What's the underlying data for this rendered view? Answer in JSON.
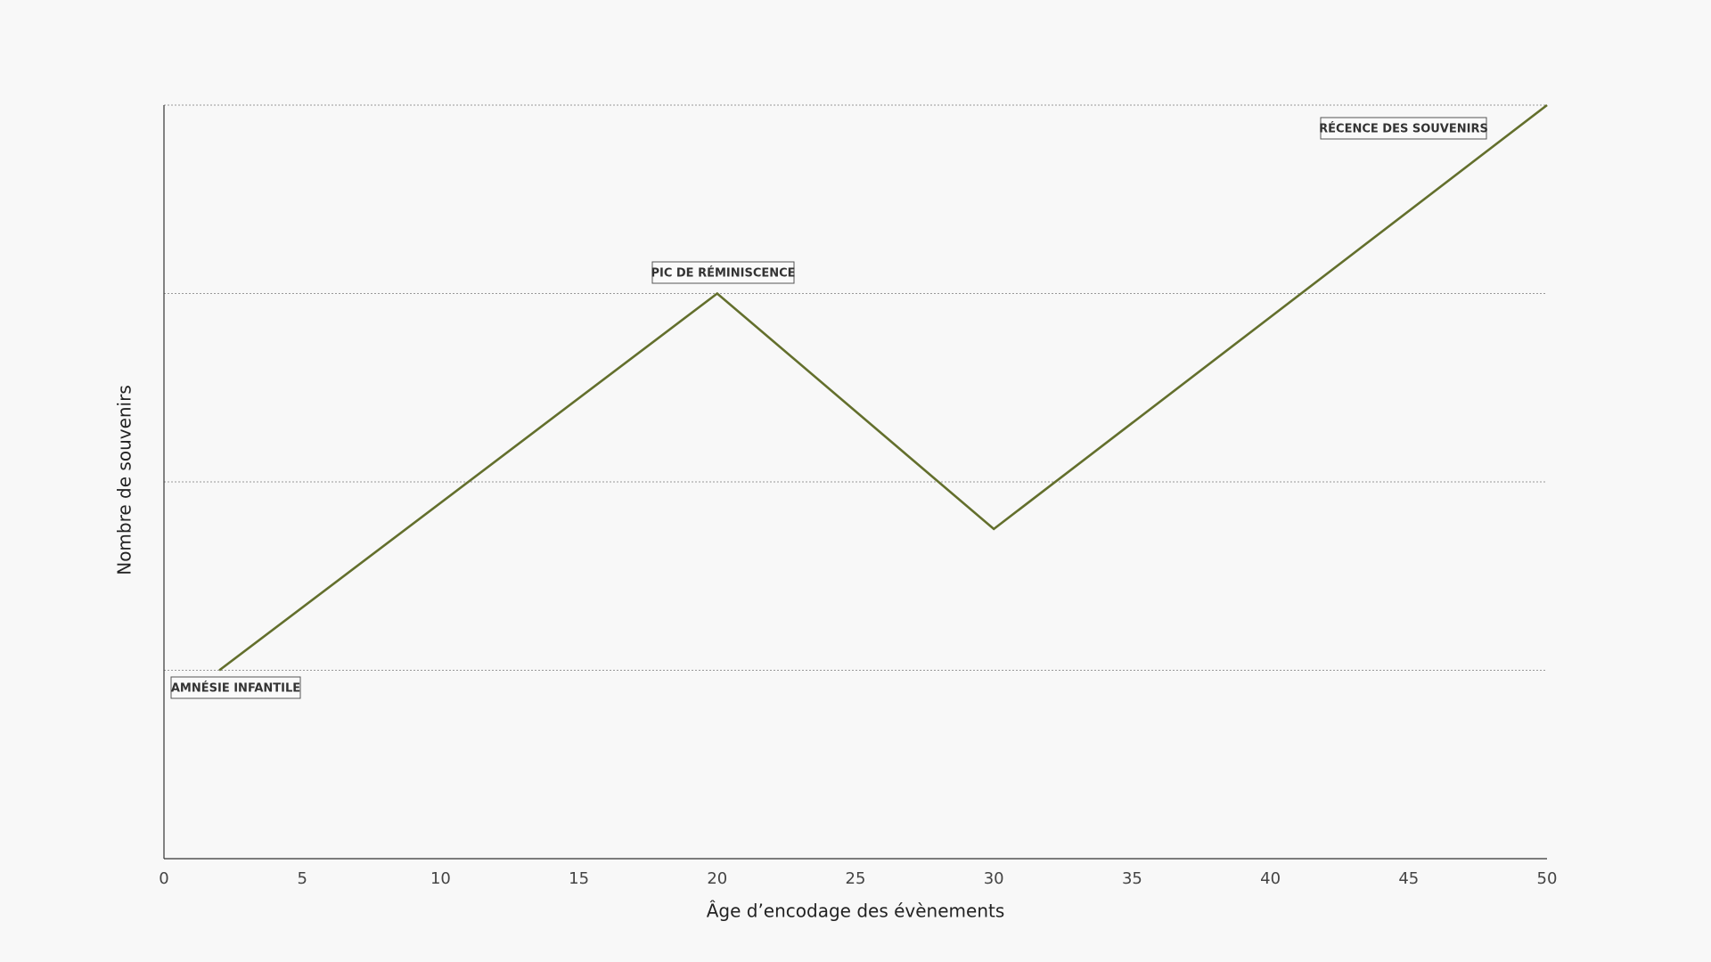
{
  "chart_data": {
    "type": "line",
    "x_label": "Âge d’encodage des évènements",
    "y_label": "Nombre de souvenirs",
    "x": [
      2,
      20,
      30,
      50
    ],
    "series": [
      {
        "color": "#636f2c",
        "values": [
          1,
          3,
          1.75,
          4
        ]
      }
    ],
    "xlim": [
      0,
      50
    ],
    "xticks": [
      0,
      5,
      10,
      15,
      20,
      25,
      30,
      35,
      40,
      45,
      50
    ],
    "ylim": [
      0,
      4
    ],
    "ygrid": [
      1,
      2,
      3,
      4
    ],
    "grid": true,
    "annotations": [
      "AMNÉSIE INFANTILE",
      "PIC DE RÉMINISCENCE",
      "RÉCENCE DES SOUVENIRS"
    ]
  }
}
